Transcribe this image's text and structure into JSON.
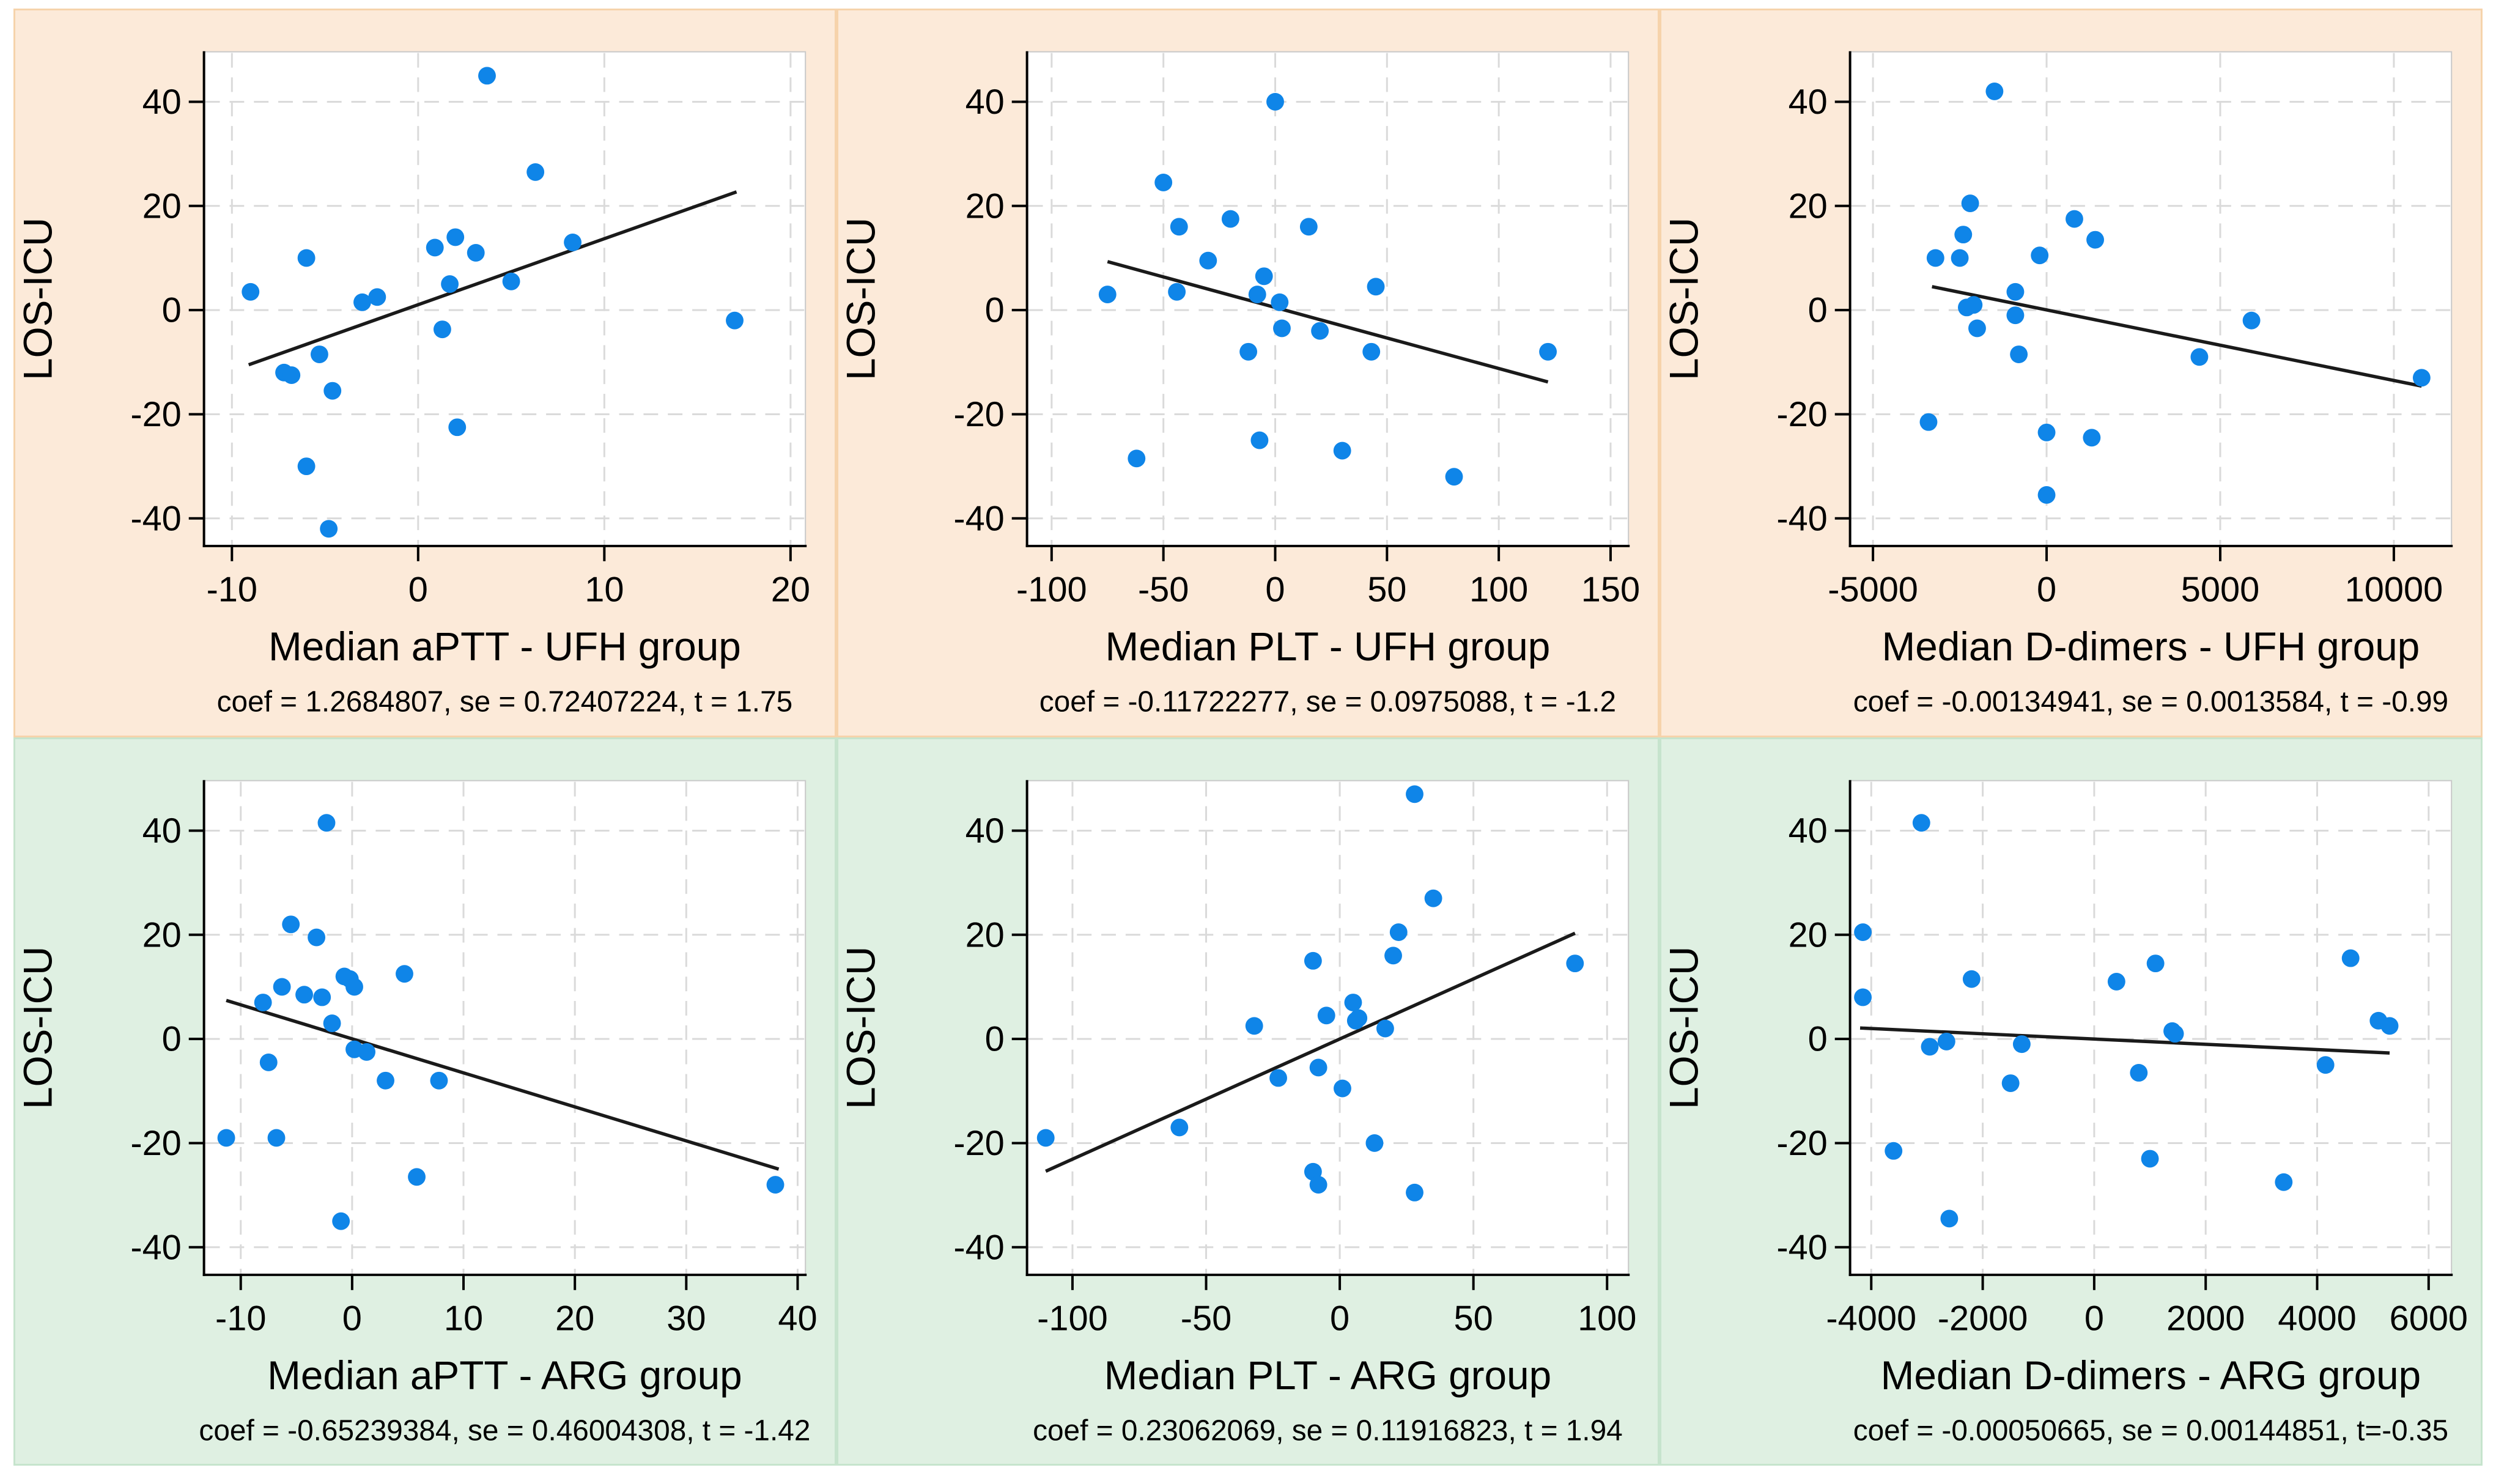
{
  "figure": {
    "background": "#ffffff",
    "point_color": "#0f85e8",
    "grid_color": "#dadada",
    "plot_border_color": "#c9c9c9",
    "axis_color": "#000000",
    "text_color": "#000000",
    "fit_line_color": "#1a1a1a",
    "rows": [
      {
        "group": "UFH",
        "panel_bg": "#fcead9",
        "panel_border": "#f6d3ab"
      },
      {
        "group": "ARG",
        "panel_bg": "#dff0e2",
        "panel_border": "#c6e4cd"
      }
    ]
  },
  "chart_data": [
    {
      "type": "scatter",
      "row": 0,
      "xlabel": "Median aPTT - UFH group",
      "ylabel": "LOS-ICU",
      "note": "coef = 1.2684807, se = 0.72407224, t = 1.75",
      "xlim": [
        -11.5,
        20.8
      ],
      "ylim": [
        -45.3,
        49.6
      ],
      "xticks": [
        -10,
        0,
        10,
        20
      ],
      "yticks": [
        -40,
        -20,
        0,
        20,
        40
      ],
      "grid": true,
      "legend": "none",
      "points": [
        [
          -9,
          3.5
        ],
        [
          -7.2,
          -12
        ],
        [
          -6.8,
          -12.5
        ],
        [
          -6,
          10
        ],
        [
          -6,
          -30
        ],
        [
          -5.3,
          -8.5
        ],
        [
          -4.8,
          -42
        ],
        [
          -4.6,
          -15.5
        ],
        [
          -3,
          1.5
        ],
        [
          -2.2,
          2.5
        ],
        [
          0.9,
          12
        ],
        [
          1.3,
          -3.7
        ],
        [
          1.7,
          5
        ],
        [
          2,
          14
        ],
        [
          2.1,
          -22.5
        ],
        [
          3.1,
          11
        ],
        [
          3.7,
          45
        ],
        [
          5,
          5.5
        ],
        [
          6.3,
          26.5
        ],
        [
          8.3,
          13
        ],
        [
          17,
          -2
        ]
      ],
      "fit_line": [
        [
          -9.1,
          -10.5
        ],
        [
          17.1,
          22.7
        ]
      ]
    },
    {
      "type": "scatter",
      "row": 0,
      "xlabel": "Median PLT - UFH group",
      "ylabel": "LOS-ICU",
      "note": "coef = -0.11722277, se = 0.0975088, t = -1.2",
      "xlim": [
        -111,
        158
      ],
      "ylim": [
        -45.3,
        49.6
      ],
      "xticks": [
        -100,
        -50,
        0,
        50,
        100,
        150
      ],
      "yticks": [
        -40,
        -20,
        0,
        20,
        40
      ],
      "grid": true,
      "legend": "none",
      "points": [
        [
          -75,
          3
        ],
        [
          -62,
          -28.5
        ],
        [
          -50,
          24.5
        ],
        [
          -44,
          3.5
        ],
        [
          -43,
          16
        ],
        [
          -30,
          9.5
        ],
        [
          -20,
          17.5
        ],
        [
          -12,
          -8
        ],
        [
          -8,
          3
        ],
        [
          -7,
          -25
        ],
        [
          -5,
          6.5
        ],
        [
          0,
          40
        ],
        [
          2,
          1.5
        ],
        [
          3,
          -3.5
        ],
        [
          15,
          16
        ],
        [
          20,
          -4
        ],
        [
          30,
          -27
        ],
        [
          43,
          -8
        ],
        [
          45,
          4.5
        ],
        [
          80,
          -32
        ],
        [
          122,
          -8
        ]
      ],
      "fit_line": [
        [
          -75,
          9.3
        ],
        [
          122,
          -13.8
        ]
      ]
    },
    {
      "type": "scatter",
      "row": 0,
      "xlabel": "Median D-dimers - UFH group",
      "ylabel": "LOS-ICU",
      "note": "coef = -0.00134941, se = 0.0013584, t = -0.99",
      "xlim": [
        -5660,
        11660
      ],
      "ylim": [
        -45.3,
        49.6
      ],
      "xticks": [
        -5000,
        0,
        5000,
        10000
      ],
      "yticks": [
        -40,
        -20,
        0,
        20,
        40
      ],
      "grid": true,
      "legend": "none",
      "points": [
        [
          -3400,
          -21.5
        ],
        [
          -3200,
          10
        ],
        [
          -2500,
          10
        ],
        [
          -2400,
          14.5
        ],
        [
          -2300,
          0.5
        ],
        [
          -2200,
          20.5
        ],
        [
          -2100,
          1
        ],
        [
          -2000,
          -3.5
        ],
        [
          -1500,
          42
        ],
        [
          -900,
          3.5
        ],
        [
          -900,
          -1
        ],
        [
          -800,
          -8.5
        ],
        [
          -200,
          10.5
        ],
        [
          0,
          -23.5
        ],
        [
          0,
          -35.5
        ],
        [
          800,
          17.5
        ],
        [
          1300,
          -24.5
        ],
        [
          1400,
          13.5
        ],
        [
          4400,
          -9
        ],
        [
          5900,
          -2
        ],
        [
          10800,
          -13
        ]
      ],
      "fit_line": [
        [
          -3300,
          4.5
        ],
        [
          10800,
          -14.6
        ]
      ]
    },
    {
      "type": "scatter",
      "row": 1,
      "xlabel": "Median aPTT - ARG group",
      "ylabel": "LOS-ICU",
      "note": "coef = -0.65239384, se = 0.46004308, t = -1.42",
      "xlim": [
        -13.3,
        40.7
      ],
      "ylim": [
        -45.3,
        49.6
      ],
      "xticks": [
        -10,
        0,
        10,
        20,
        30,
        40
      ],
      "yticks": [
        -40,
        -20,
        0,
        20,
        40
      ],
      "grid": true,
      "legend": "none",
      "points": [
        [
          -11.3,
          -19
        ],
        [
          -8,
          7
        ],
        [
          -7.5,
          -4.5
        ],
        [
          -6.8,
          -19
        ],
        [
          -6.3,
          10
        ],
        [
          -5.5,
          22
        ],
        [
          -4.3,
          8.5
        ],
        [
          -3.2,
          19.5
        ],
        [
          -2.7,
          8
        ],
        [
          -2.3,
          41.5
        ],
        [
          -1.8,
          3
        ],
        [
          -1,
          -35
        ],
        [
          -0.7,
          12
        ],
        [
          -0.2,
          11.5
        ],
        [
          0.2,
          10
        ],
        [
          0.2,
          -2
        ],
        [
          1.3,
          -2.5
        ],
        [
          3,
          -8
        ],
        [
          4.7,
          12.5
        ],
        [
          5.8,
          -26.5
        ],
        [
          7.8,
          -8
        ],
        [
          38,
          -28
        ]
      ],
      "fit_line": [
        [
          -11.3,
          7.4
        ],
        [
          38.3,
          -25
        ]
      ]
    },
    {
      "type": "scatter",
      "row": 1,
      "xlabel": "Median PLT - ARG group",
      "ylabel": "LOS-ICU",
      "note": "coef = 0.23062069, se = 0.11916823, t = 1.94",
      "xlim": [
        -117,
        108
      ],
      "ylim": [
        -45.3,
        49.6
      ],
      "xticks": [
        -100,
        -50,
        0,
        50,
        100
      ],
      "yticks": [
        -40,
        -20,
        0,
        20,
        40
      ],
      "grid": true,
      "legend": "none",
      "points": [
        [
          -110,
          -19
        ],
        [
          -60,
          -17
        ],
        [
          -32,
          2.5
        ],
        [
          -23,
          -7.5
        ],
        [
          -10,
          15
        ],
        [
          -10,
          -25.5
        ],
        [
          -8,
          -28
        ],
        [
          -8,
          -5.5
        ],
        [
          -5,
          4.5
        ],
        [
          1,
          -9.5
        ],
        [
          5,
          7
        ],
        [
          6,
          3.5
        ],
        [
          7,
          4
        ],
        [
          13,
          -20
        ],
        [
          17,
          2
        ],
        [
          20,
          16
        ],
        [
          22,
          20.5
        ],
        [
          28,
          47
        ],
        [
          28,
          -29.5
        ],
        [
          35,
          27
        ],
        [
          88,
          14.5
        ]
      ],
      "fit_line": [
        [
          -110,
          -25.4
        ],
        [
          88,
          20.3
        ]
      ]
    },
    {
      "type": "scatter",
      "row": 1,
      "xlabel": "Median D-dimers - ARG group",
      "ylabel": "LOS-ICU",
      "note": "coef = -0.00050665, se = 0.00144851, t=-0.35",
      "xlim": [
        -4380,
        6410
      ],
      "ylim": [
        -45.3,
        49.6
      ],
      "xticks": [
        -4000,
        -2000,
        0,
        2000,
        4000,
        6000
      ],
      "yticks": [
        -40,
        -20,
        0,
        20,
        40
      ],
      "grid": true,
      "legend": "none",
      "points": [
        [
          -4150,
          20.5
        ],
        [
          -4150,
          8
        ],
        [
          -3600,
          -21.5
        ],
        [
          -3100,
          41.5
        ],
        [
          -2950,
          -1.5
        ],
        [
          -2650,
          -0.5
        ],
        [
          -2600,
          -34.5
        ],
        [
          -2200,
          11.5
        ],
        [
          -1500,
          -8.5
        ],
        [
          -1300,
          -1
        ],
        [
          400,
          11
        ],
        [
          800,
          -6.5
        ],
        [
          1000,
          -23
        ],
        [
          1100,
          14.5
        ],
        [
          1400,
          1.5
        ],
        [
          1450,
          1
        ],
        [
          3400,
          -27.5
        ],
        [
          4150,
          -5
        ],
        [
          4600,
          15.5
        ],
        [
          5100,
          3.5
        ],
        [
          5300,
          2.5
        ]
      ],
      "fit_line": [
        [
          -4200,
          2.1
        ],
        [
          5300,
          -2.7
        ]
      ]
    }
  ]
}
